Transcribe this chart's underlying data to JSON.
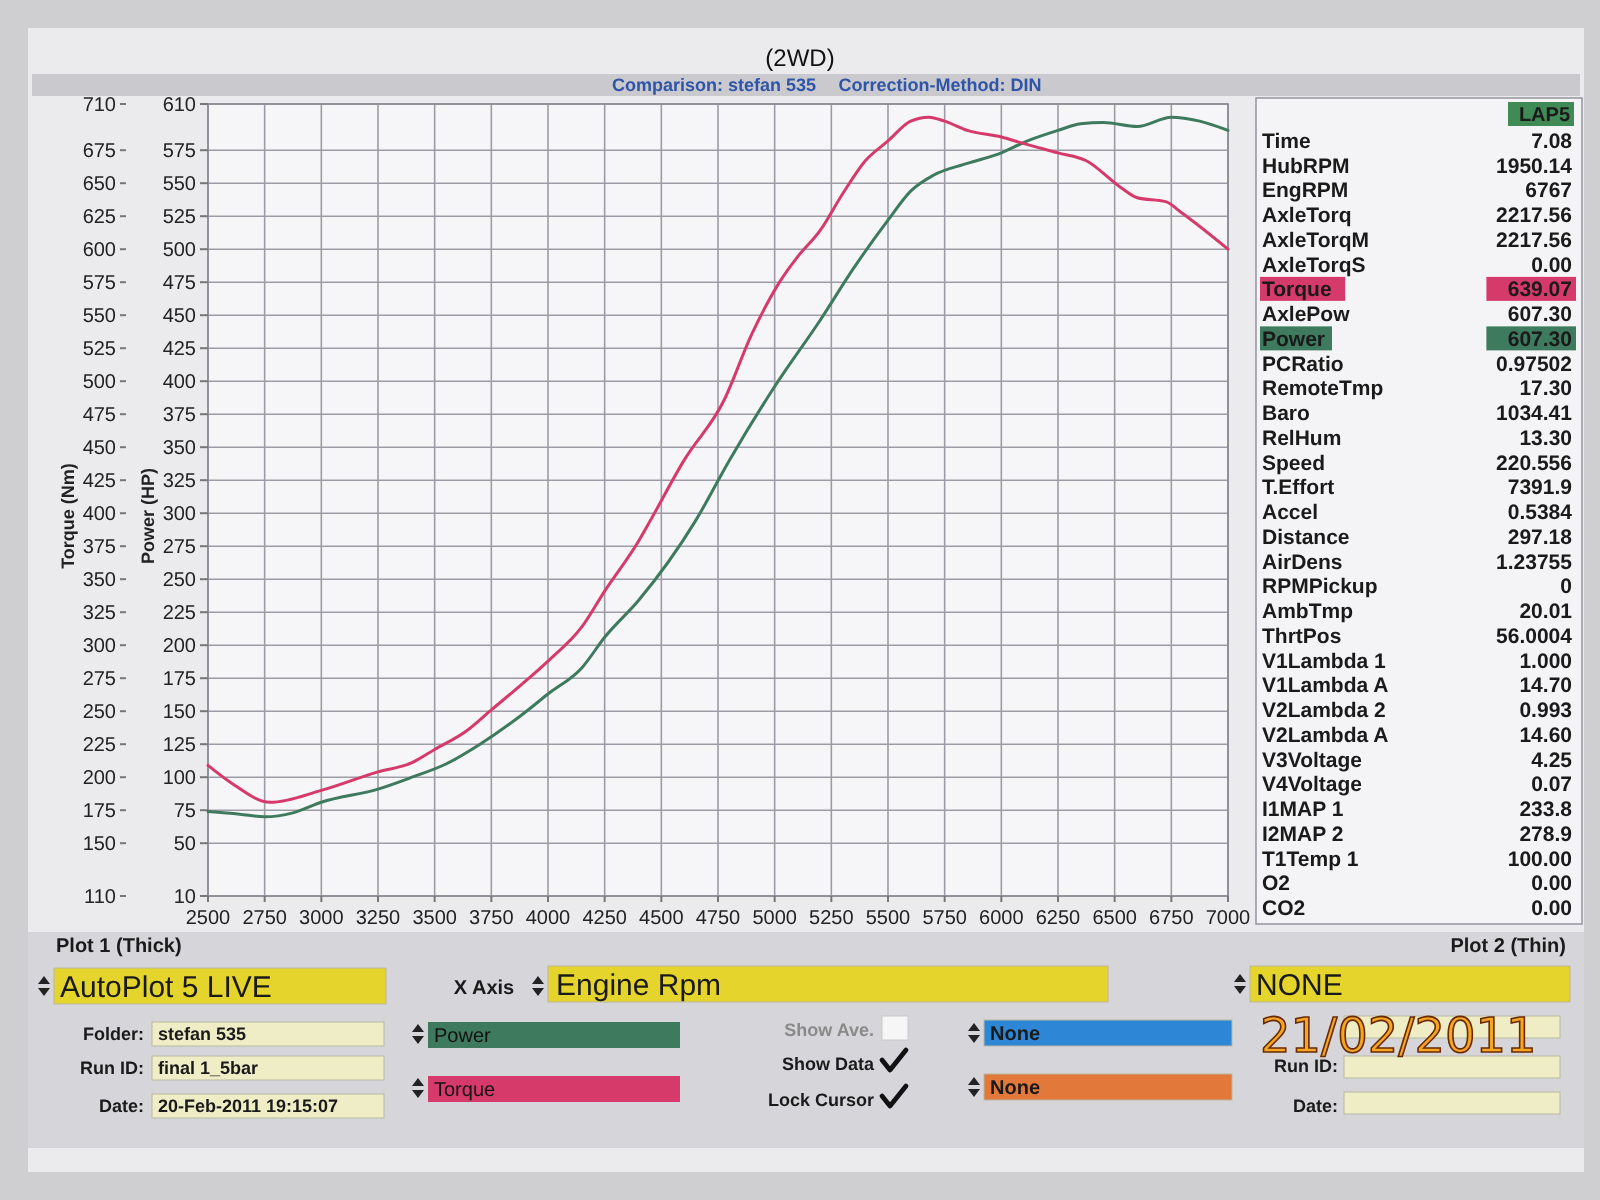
{
  "chart_data": [
    {
      "type": "line",
      "title": "(2WD)",
      "subtitle": "Comparison: stefan 535",
      "xlabel": "Engine Rpm",
      "ylabel": "Torque (Nm)",
      "y2label": "Power (HP)",
      "xlim": [
        2500,
        7000
      ],
      "xticks": [
        2500,
        2750,
        3000,
        3250,
        3500,
        3750,
        4000,
        4250,
        4500,
        4750,
        5000,
        5250,
        5500,
        5750,
        6000,
        6250,
        6500,
        6750,
        7000
      ],
      "ylim": [
        110,
        710
      ],
      "yticks": [
        110,
        150,
        175,
        200,
        225,
        250,
        275,
        300,
        325,
        350,
        375,
        400,
        425,
        450,
        475,
        500,
        525,
        550,
        575,
        600,
        625,
        650,
        675,
        710
      ],
      "y2lim": [
        10,
        610
      ],
      "y2ticks": [
        10,
        50,
        75,
        100,
        125,
        150,
        175,
        200,
        225,
        250,
        275,
        300,
        325,
        350,
        375,
        400,
        425,
        450,
        475,
        500,
        525,
        550,
        575,
        610
      ],
      "grid": true,
      "legend": "bottom",
      "series": [
        {
          "name": "Power",
          "color": "#3e7a5e",
          "axis": "y2",
          "x": [
            2500,
            2640,
            2750,
            2875,
            3000,
            3250,
            3400,
            3550,
            3700,
            3875,
            4000,
            4150,
            4250,
            4400,
            4650,
            4800,
            5000,
            5200,
            5350,
            5500,
            5600,
            5700,
            5850,
            6000,
            6100,
            6250,
            6350,
            6450,
            6600,
            6750,
            6875,
            7000
          ],
          "values": [
            74,
            72,
            70,
            73,
            81,
            91,
            100,
            110,
            125,
            146,
            163,
            183,
            206,
            234,
            294,
            340,
            396,
            446,
            486,
            522,
            544,
            556,
            565,
            573,
            581,
            590,
            595,
            596,
            593,
            600,
            597,
            590
          ]
        },
        {
          "name": "Torque",
          "color": "#d63a6a",
          "x": [
            2500,
            2600,
            2775,
            3000,
            3250,
            3400,
            3500,
            3640,
            3750,
            3875,
            4000,
            4150,
            4250,
            4400,
            4450,
            4600,
            4775,
            4900,
            5025,
            5100,
            5200,
            5300,
            5400,
            5500,
            5600,
            5680,
            5750,
            5850,
            6000,
            6100,
            6250,
            6375,
            6525,
            6600,
            6725,
            6800,
            7000
          ],
          "values": [
            209,
            196,
            181,
            190,
            204,
            211,
            221,
            235,
            251,
            269,
            288,
            314,
            341,
            379,
            394,
            440,
            485,
            536,
            576,
            594,
            614,
            642,
            667,
            682,
            697,
            700,
            697,
            690,
            685,
            680,
            673,
            667,
            647,
            639,
            636,
            627,
            600
          ]
        }
      ],
      "annotations": [
        "Correction-Method: DIN",
        "Plot 1 (Thick)",
        "AutoPlot 5 LIVE",
        "X Axis",
        "Plot 2 (Thin)",
        "NONE",
        "Folder:",
        "stefan 535",
        "Run ID:",
        "final 1_5bar",
        "Date:",
        "20-Feb-2011 19:15:07",
        "Show Ave.",
        "Show Data",
        "Lock Cursor",
        "None",
        "None",
        "Run ID:",
        "Date:",
        "21/02/2011"
      ]
    },
    {
      "type": "other",
      "title": "LAP5",
      "categories": [
        "Time",
        "HubRPM",
        "EngRPM",
        "AxleTorq",
        "AxleTorqM",
        "AxleTorqS",
        "Torque",
        "AxlePow",
        "Power",
        "PCRatio",
        "RemoteTmp",
        "Baro",
        "RelHum",
        "Speed",
        "T.Effort",
        "Accel",
        "Distance",
        "AirDens",
        "RPMPickup",
        "AmbTmp",
        "ThrtPos",
        "V1Lambda 1",
        "V1Lambda A",
        "V2Lambda 2",
        "V2Lambda A",
        "V3Voltage",
        "V4Voltage",
        "I1MAP 1",
        "I2MAP 2",
        "T1Temp 1",
        "O2",
        "CO2"
      ],
      "value_labels": [
        "7.08",
        "1950.14",
        "6767",
        "2217.56",
        "2217.56",
        "0.00",
        "639.07",
        "607.30",
        "607.30",
        "0.97502",
        "17.30",
        "1034.41",
        "13.30",
        "220.556",
        "7391.9",
        "0.5384",
        "297.18",
        "1.23755",
        "0",
        "20.01",
        "56.0004",
        "1.000",
        "14.70",
        "0.993",
        "14.60",
        "4.25",
        "0.07",
        "233.8",
        "278.9",
        "100.00",
        "0.00",
        "0.00"
      ],
      "colors": [
        null,
        null,
        null,
        null,
        null,
        null,
        "#d63a6a",
        null,
        "#3e7a5e",
        null,
        null,
        null,
        null,
        null,
        null,
        null,
        null,
        null,
        null,
        null,
        null,
        null,
        null,
        null,
        null,
        null,
        null,
        null,
        null,
        null,
        null,
        null
      ]
    }
  ]
}
